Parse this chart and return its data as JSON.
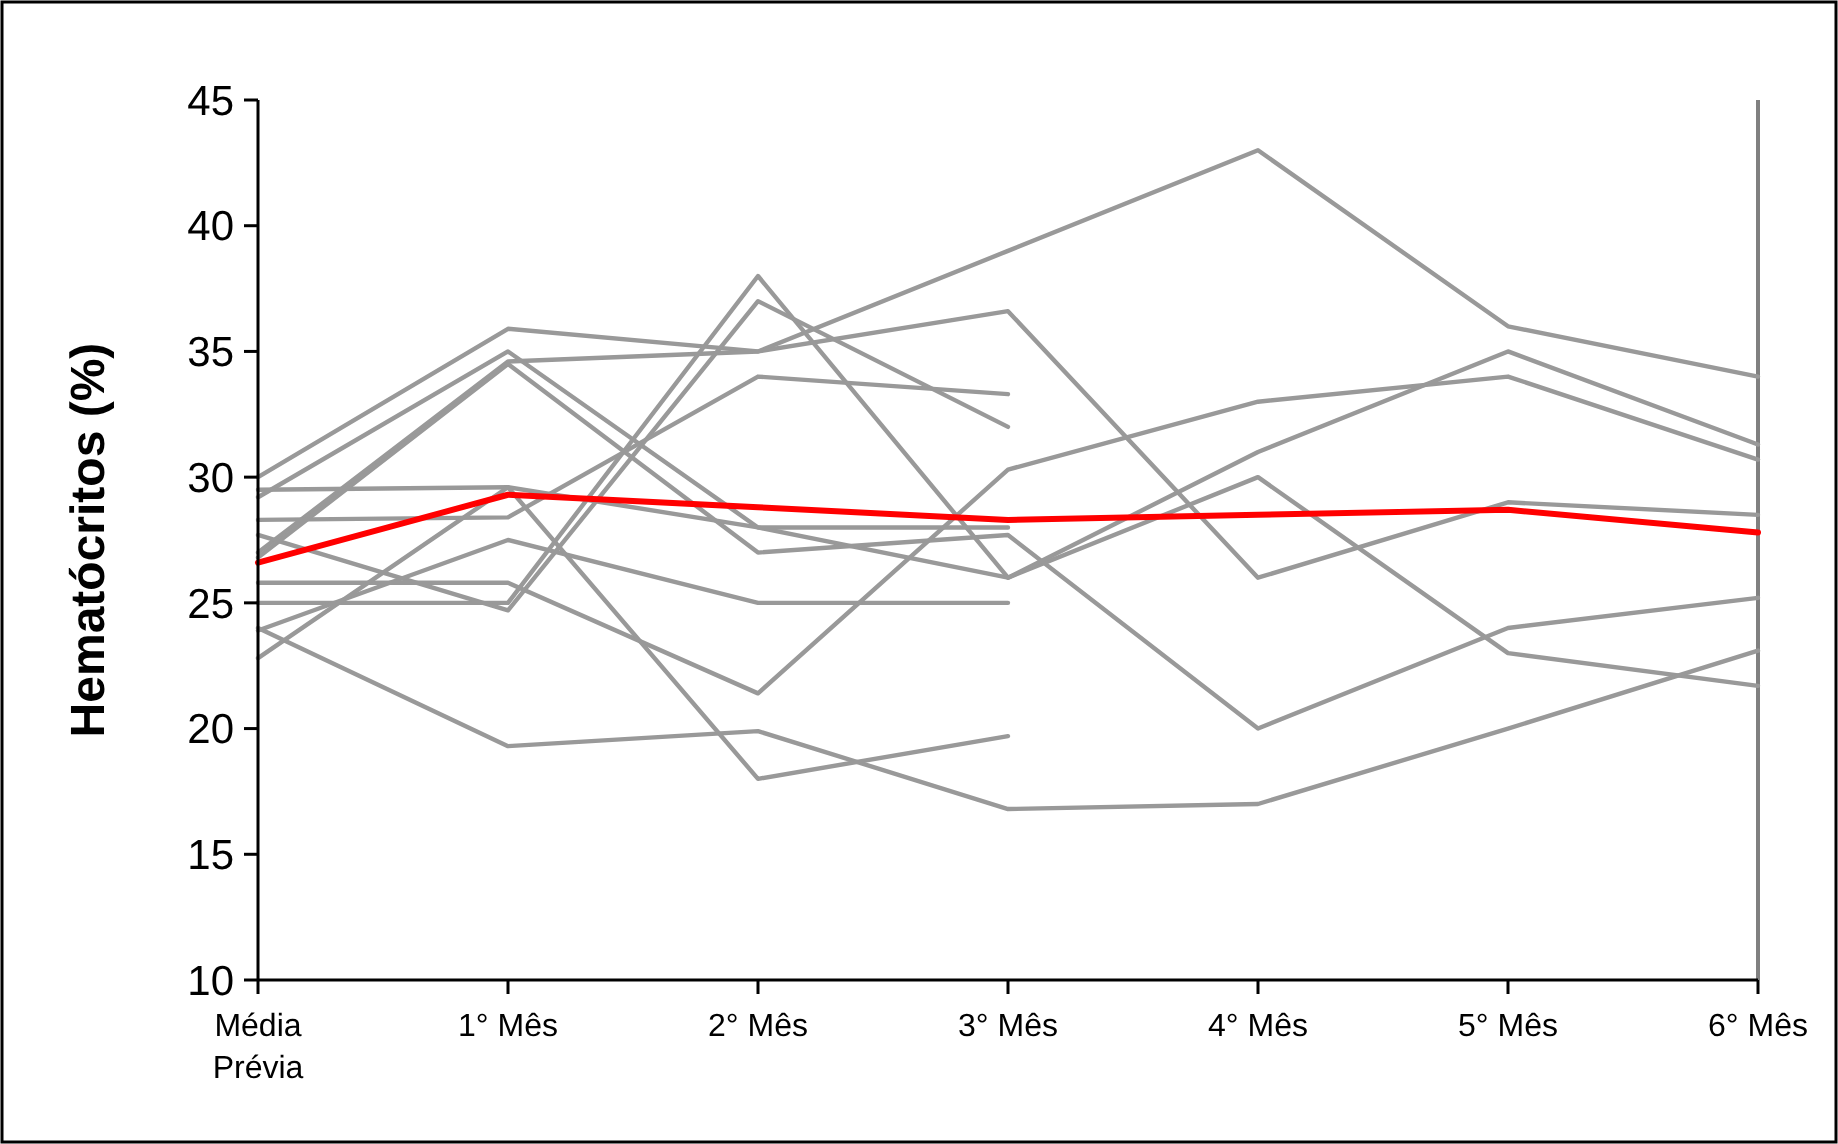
{
  "chart_data": {
    "type": "line",
    "ylabel": "Hematócritos (%)",
    "categories": [
      "Média Prévia",
      "1° Mês",
      "2° Mês",
      "3° Mês",
      "4° Mês",
      "5° Mês",
      "6° Mês"
    ],
    "ylim": [
      10,
      45
    ],
    "yticks": [
      10,
      15,
      20,
      25,
      30,
      35,
      40,
      45
    ],
    "marker": "none",
    "series": [
      {
        "color": "#999999",
        "values": [
          30.0,
          35.9,
          35.0,
          39.0,
          43.0,
          36.0,
          34.0
        ]
      },
      {
        "color": "#999999",
        "values": [
          27.0,
          34.6,
          35.0,
          36.6,
          26.0,
          29.0,
          28.5
        ]
      },
      {
        "color": "#999999",
        "values": [
          29.2,
          35.0,
          28.0,
          26.0,
          30.0,
          23.0,
          21.7
        ]
      },
      {
        "color": "#999999",
        "values": [
          26.8,
          34.5,
          27.0,
          27.7,
          20.0,
          24.0,
          25.2
        ]
      },
      {
        "color": "#999999",
        "values": [
          25.0,
          25.0,
          38.0,
          26.0,
          31.0,
          35.0,
          31.3
        ]
      },
      {
        "color": "#999999",
        "values": [
          27.7,
          24.7,
          37.0,
          32.0,
          null,
          null,
          null
        ]
      },
      {
        "color": "#999999",
        "values": [
          28.3,
          28.4,
          34.0,
          33.3,
          null,
          null,
          null
        ]
      },
      {
        "color": "#999999",
        "values": [
          29.5,
          29.6,
          28.0,
          28.0,
          null,
          null,
          null
        ]
      },
      {
        "color": "#999999",
        "values": [
          23.9,
          27.5,
          25.0,
          25.0,
          null,
          null,
          null
        ]
      },
      {
        "color": "#999999",
        "values": [
          25.8,
          25.8,
          21.4,
          30.3,
          33.0,
          34.0,
          30.7
        ]
      },
      {
        "color": "#999999",
        "values": [
          24.0,
          19.3,
          19.9,
          16.8,
          17.0,
          20.0,
          23.1
        ]
      },
      {
        "color": "#999999",
        "values": [
          22.8,
          29.6,
          18.0,
          19.7,
          null,
          null,
          null
        ]
      },
      {
        "color": "#ff0000",
        "values": [
          26.6,
          29.3,
          28.8,
          28.3,
          28.5,
          28.7,
          27.8
        ]
      }
    ]
  }
}
